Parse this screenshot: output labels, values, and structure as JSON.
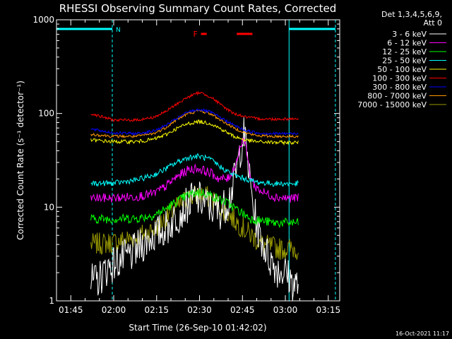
{
  "chart_data": {
    "type": "line",
    "title": "RHESSI Observing Summary Count Rates, Corrected",
    "xlabel": "Start Time (26-Sep-10 01:42:02)",
    "ylabel": "Corrected Count Rate (s⁻¹ detector⁻¹)",
    "x_range_min": [
      100.0,
      199.0
    ],
    "x_ticks": [
      {
        "label": "01:45",
        "value": 105
      },
      {
        "label": "02:00",
        "value": 120
      },
      {
        "label": "02:15",
        "value": 135
      },
      {
        "label": "02:30",
        "value": 150
      },
      {
        "label": "02:45",
        "value": 165
      },
      {
        "label": "03:00",
        "value": 180
      },
      {
        "label": "03:15",
        "value": 195
      }
    ],
    "y_scale": "log",
    "ylim": [
      1,
      1000
    ],
    "y_ticks": [
      {
        "label": "1000",
        "value": 1000
      },
      {
        "label": "100",
        "value": 100
      },
      {
        "label": "10",
        "value": 10
      },
      {
        "label": "1",
        "value": 1
      }
    ],
    "legend_header": [
      "Det 1,3,4,5,6,9,",
      "Att 0"
    ],
    "legend_placement": "right",
    "annotations": {
      "n_label": "N",
      "f_label": "F"
    },
    "timestamp": "16-Oct-2021 11:17",
    "night_segments": [
      {
        "from": 100.0,
        "to": 119.5
      },
      {
        "from": 181.3,
        "to": 197.5
      }
    ],
    "flare_segments": [
      {
        "from": 150.5,
        "to": 152.5
      },
      {
        "from": 163.0,
        "to": 168.5
      }
    ],
    "data_start": 112.0,
    "data_end": 184.5,
    "series": [
      {
        "name": "3 - 6 keV",
        "color": "#ffffff",
        "points": [
          [
            114,
            1.6
          ],
          [
            118,
            2.3
          ],
          [
            122,
            2.7
          ],
          [
            126,
            3.1
          ],
          [
            130,
            4.0
          ],
          [
            133,
            4.8
          ],
          [
            136,
            5.4
          ],
          [
            139,
            6.2
          ],
          [
            142,
            8.0
          ],
          [
            145,
            10.0
          ],
          [
            148,
            12.5
          ],
          [
            150,
            12.0
          ],
          [
            152,
            11.0
          ],
          [
            154,
            10.0
          ],
          [
            157,
            9.0
          ],
          [
            159,
            10.5
          ],
          [
            161,
            14
          ],
          [
            163,
            25
          ],
          [
            164.5,
            45
          ],
          [
            165.5,
            60
          ],
          [
            166.5,
            40
          ],
          [
            167.5,
            20
          ],
          [
            169,
            9
          ],
          [
            171,
            5
          ],
          [
            174,
            3
          ],
          [
            177,
            2.2
          ],
          [
            180,
            2.0
          ],
          [
            183,
            1.5
          ]
        ]
      },
      {
        "name": "6 - 12 keV",
        "color": "#ff00ff",
        "points": [
          [
            112,
            12.5
          ],
          [
            120,
            12.5
          ],
          [
            128,
            13.0
          ],
          [
            134,
            14.0
          ],
          [
            138,
            16.5
          ],
          [
            142,
            21
          ],
          [
            146,
            25
          ],
          [
            149,
            26
          ],
          [
            151,
            25
          ],
          [
            154,
            23
          ],
          [
            157,
            20
          ],
          [
            160,
            20
          ],
          [
            162,
            26
          ],
          [
            163.5,
            35
          ],
          [
            164.5,
            48
          ],
          [
            165.5,
            55
          ],
          [
            166.5,
            38
          ],
          [
            167.5,
            24
          ],
          [
            169,
            17
          ],
          [
            172,
            14.5
          ],
          [
            176,
            13.0
          ],
          [
            180,
            12.5
          ],
          [
            184,
            12.5
          ]
        ]
      },
      {
        "name": "12 - 25 keV",
        "color": "#00ff00",
        "points": [
          [
            112,
            7.5
          ],
          [
            120,
            7.5
          ],
          [
            128,
            7.6
          ],
          [
            134,
            8.2
          ],
          [
            138,
            9.5
          ],
          [
            142,
            11.5
          ],
          [
            146,
            13.5
          ],
          [
            150,
            14.5
          ],
          [
            153,
            13.8
          ],
          [
            156,
            12.5
          ],
          [
            160,
            11.0
          ],
          [
            164,
            9.0
          ],
          [
            168,
            7.5
          ],
          [
            176,
            6.8
          ],
          [
            184,
            6.8
          ]
        ]
      },
      {
        "name": "25 - 50 keV",
        "color": "#00ffff",
        "points": [
          [
            112,
            18
          ],
          [
            120,
            18
          ],
          [
            128,
            19.5
          ],
          [
            134,
            22
          ],
          [
            138,
            25.5
          ],
          [
            142,
            30
          ],
          [
            146,
            34
          ],
          [
            150,
            35
          ],
          [
            154,
            32
          ],
          [
            158,
            26
          ],
          [
            162,
            22
          ],
          [
            166,
            20
          ],
          [
            170,
            18.5
          ],
          [
            176,
            17.8
          ],
          [
            184,
            17.8
          ]
        ]
      },
      {
        "name": "50 - 100 keV",
        "color": "#ffff00",
        "points": [
          [
            112,
            52
          ],
          [
            120,
            50
          ],
          [
            128,
            50
          ],
          [
            134,
            53
          ],
          [
            138,
            59
          ],
          [
            142,
            69
          ],
          [
            146,
            78
          ],
          [
            150,
            82
          ],
          [
            154,
            78
          ],
          [
            158,
            67
          ],
          [
            162,
            57
          ],
          [
            166,
            52
          ],
          [
            170,
            50
          ],
          [
            176,
            49
          ],
          [
            184,
            49
          ]
        ]
      },
      {
        "name": "100 - 300 keV",
        "color": "#ff0000",
        "points": [
          [
            112,
            100
          ],
          [
            116,
            92
          ],
          [
            120,
            85
          ],
          [
            128,
            85
          ],
          [
            134,
            91
          ],
          [
            138,
            104
          ],
          [
            142,
            126
          ],
          [
            146,
            150
          ],
          [
            150,
            168
          ],
          [
            154,
            150
          ],
          [
            158,
            120
          ],
          [
            162,
            100
          ],
          [
            166,
            92
          ],
          [
            170,
            88
          ],
          [
            176,
            87
          ],
          [
            184,
            88
          ]
        ]
      },
      {
        "name": "300 - 800 keV",
        "color": "#0000ff",
        "points": [
          [
            112,
            68
          ],
          [
            120,
            62
          ],
          [
            128,
            61
          ],
          [
            134,
            65
          ],
          [
            138,
            74
          ],
          [
            142,
            88
          ],
          [
            146,
            104
          ],
          [
            150,
            111
          ],
          [
            154,
            103
          ],
          [
            158,
            88
          ],
          [
            162,
            75
          ],
          [
            166,
            66
          ],
          [
            170,
            62
          ],
          [
            176,
            61
          ],
          [
            184,
            61
          ]
        ]
      },
      {
        "name": "800 - 7000 keV",
        "color": "#ff9900",
        "points": [
          [
            112,
            60
          ],
          [
            120,
            57
          ],
          [
            128,
            57
          ],
          [
            134,
            61
          ],
          [
            138,
            70
          ],
          [
            142,
            86
          ],
          [
            146,
            100
          ],
          [
            150,
            107
          ],
          [
            154,
            99
          ],
          [
            158,
            83
          ],
          [
            162,
            70
          ],
          [
            166,
            62
          ],
          [
            170,
            58
          ],
          [
            176,
            57
          ],
          [
            184,
            57
          ]
        ]
      },
      {
        "name": "7000 - 15000 keV",
        "color": "#999900",
        "points": [
          [
            112,
            4.0
          ],
          [
            120,
            4.2
          ],
          [
            128,
            4.8
          ],
          [
            134,
            5.8
          ],
          [
            138,
            7.5
          ],
          [
            142,
            10.0
          ],
          [
            146,
            12.5
          ],
          [
            150,
            13.5
          ],
          [
            153,
            12.8
          ],
          [
            156,
            11.0
          ],
          [
            160,
            8.5
          ],
          [
            164,
            6.5
          ],
          [
            168,
            5.0
          ],
          [
            172,
            4.0
          ],
          [
            178,
            3.6
          ],
          [
            184,
            3.6
          ]
        ]
      }
    ]
  }
}
